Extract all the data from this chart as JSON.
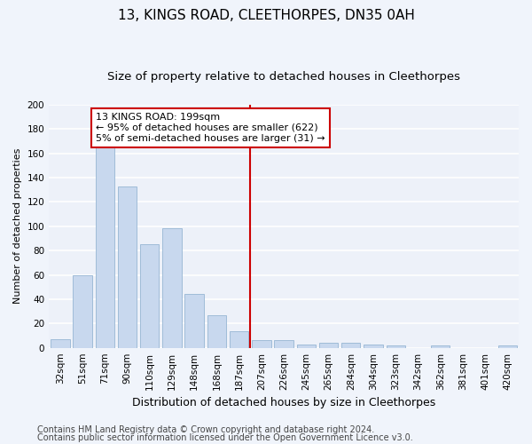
{
  "title": "13, KINGS ROAD, CLEETHORPES, DN35 0AH",
  "subtitle": "Size of property relative to detached houses in Cleethorpes",
  "xlabel": "Distribution of detached houses by size in Cleethorpes",
  "ylabel": "Number of detached properties",
  "bar_color": "#c8d8ee",
  "bar_edge_color": "#a0bcd8",
  "categories": [
    "32sqm",
    "51sqm",
    "71sqm",
    "90sqm",
    "110sqm",
    "129sqm",
    "148sqm",
    "168sqm",
    "187sqm",
    "207sqm",
    "226sqm",
    "245sqm",
    "265sqm",
    "284sqm",
    "304sqm",
    "323sqm",
    "342sqm",
    "362sqm",
    "381sqm",
    "401sqm",
    "420sqm"
  ],
  "values": [
    7,
    60,
    165,
    133,
    85,
    98,
    44,
    27,
    14,
    6,
    6,
    3,
    4,
    4,
    3,
    2,
    0,
    2,
    0,
    0,
    2
  ],
  "vline_color": "#cc0000",
  "annotation_line1": "13 KINGS ROAD: 199sqm",
  "annotation_line2": "← 95% of detached houses are smaller (622)",
  "annotation_line3": "5% of semi-detached houses are larger (31) →",
  "ylim": [
    0,
    200
  ],
  "yticks": [
    0,
    20,
    40,
    60,
    80,
    100,
    120,
    140,
    160,
    180,
    200
  ],
  "footer1": "Contains HM Land Registry data © Crown copyright and database right 2024.",
  "footer2": "Contains public sector information licensed under the Open Government Licence v3.0.",
  "bg_color": "#edf1f9",
  "grid_color": "#ffffff",
  "title_fontsize": 11,
  "subtitle_fontsize": 9.5,
  "xlabel_fontsize": 9,
  "ylabel_fontsize": 8,
  "tick_fontsize": 7.5,
  "annotation_fontsize": 8,
  "footer_fontsize": 7
}
